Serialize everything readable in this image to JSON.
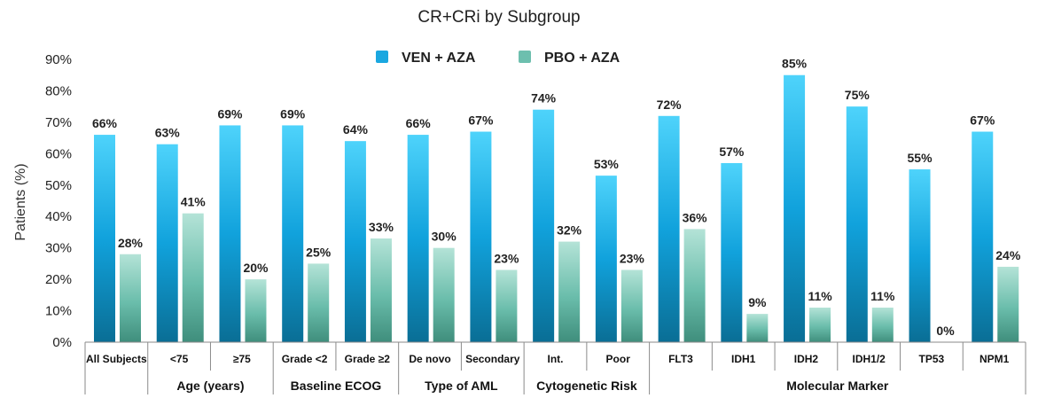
{
  "chart_data": {
    "type": "bar",
    "title": "CR+CRi by Subgroup",
    "xlabel": "",
    "ylabel": "Patients (%)",
    "ylim": [
      0,
      90
    ],
    "yticks": [
      "0%",
      "10%",
      "20%",
      "30%",
      "40%",
      "50%",
      "60%",
      "70%",
      "80%",
      "90%"
    ],
    "grid": false,
    "legend_position": "top-center",
    "categories": [
      "All Subjects",
      "<75",
      "≥75",
      "Grade <2",
      "Grade ≥2",
      "De novo",
      "Secondary",
      "Int.",
      "Poor",
      "FLT3",
      "IDH1",
      "IDH2",
      "IDH1/2",
      "TP53",
      "NPM1"
    ],
    "groups": [
      {
        "label": "Age (years)",
        "start": 1,
        "end": 2
      },
      {
        "label": "Baseline ECOG",
        "start": 3,
        "end": 4
      },
      {
        "label": "Type of AML",
        "start": 5,
        "end": 6
      },
      {
        "label": "Cytogenetic Risk",
        "start": 7,
        "end": 8
      },
      {
        "label": "Molecular Marker",
        "start": 9,
        "end": 14
      }
    ],
    "series": [
      {
        "name": "VEN + AZA",
        "color": "#1aa7e0",
        "values": [
          66,
          63,
          69,
          69,
          64,
          66,
          67,
          74,
          53,
          72,
          57,
          85,
          75,
          55,
          67
        ],
        "labels": [
          "66%",
          "63%",
          "69%",
          "69%",
          "64%",
          "66%",
          "67%",
          "74%",
          "53%",
          "72%",
          "57%",
          "85%",
          "75%",
          "55%",
          "67%"
        ]
      },
      {
        "name": "PBO + AZA",
        "color": "#6dbfae",
        "values": [
          28,
          41,
          20,
          25,
          33,
          30,
          23,
          32,
          23,
          36,
          9,
          11,
          11,
          0,
          24
        ],
        "labels": [
          "28%",
          "41%",
          "20%",
          "25%",
          "33%",
          "30%",
          "23%",
          "32%",
          "23%",
          "36%",
          "9%",
          "11%",
          "11%",
          "0%",
          "24%"
        ]
      }
    ]
  }
}
